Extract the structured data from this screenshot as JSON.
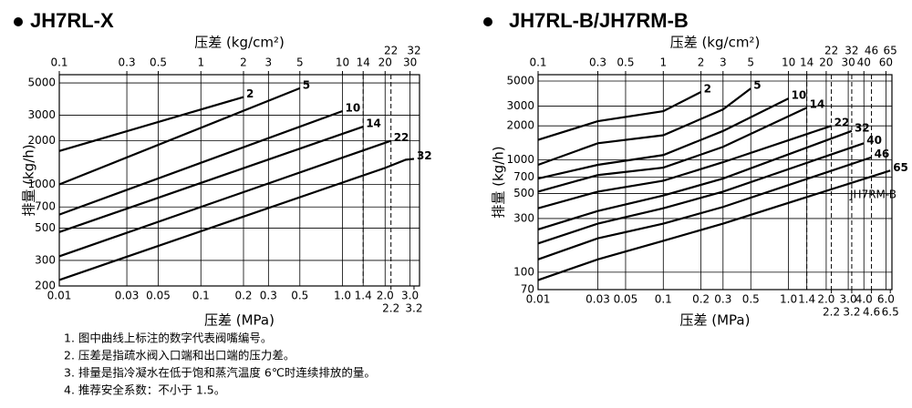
{
  "chart_data": [
    {
      "type": "line",
      "title": "JH7RL-X",
      "x_label": "压差 (MPa)",
      "x2_label": "压差 (kg/cm²)",
      "y_label": "排量 (kg/h)",
      "xscale": "log",
      "yscale": "log",
      "grid": true,
      "color": "#000000",
      "xlim": [
        0.01,
        3.5
      ],
      "ylim": [
        200,
        5700
      ],
      "x2lim": [
        0.1,
        35
      ],
      "xticks": [
        0.01,
        0.03,
        0.05,
        0.1,
        0.2,
        0.3,
        0.5,
        {
          "value": 1,
          "label": "1.0"
        },
        1.4,
        {
          "value": 2,
          "label": "2.0"
        },
        {
          "value": 3,
          "label": "3.0"
        }
      ],
      "xticks_row2": [
        2.2,
        3.2
      ],
      "x2ticks": [
        0.1,
        0.3,
        0.5,
        1,
        2,
        3,
        5,
        10,
        14,
        20,
        30
      ],
      "x2ticks_row2": [
        22,
        32
      ],
      "dashed_x": [
        1.4,
        2.2
      ],
      "yticks": [
        200,
        300,
        500,
        700,
        1000,
        2000,
        3000,
        5000
      ],
      "series": [
        {
          "name": "2",
          "x": [
            0.01,
            0.2
          ],
          "values": [
            1700,
            4000
          ]
        },
        {
          "name": "5",
          "x": [
            0.01,
            0.5
          ],
          "values": [
            1000,
            4600
          ]
        },
        {
          "name": "10",
          "x": [
            0.01,
            1.0
          ],
          "values": [
            620,
            3200
          ]
        },
        {
          "name": "14",
          "x": [
            0.01,
            1.4
          ],
          "values": [
            470,
            2500
          ]
        },
        {
          "name": "22",
          "x": [
            0.01,
            2.2
          ],
          "values": [
            320,
            2000
          ]
        },
        {
          "name": "32",
          "x": [
            0.01,
            2.0,
            2.8,
            3.2
          ],
          "values": [
            220,
            1300,
            1480,
            1500
          ]
        }
      ]
    },
    {
      "type": "line",
      "title": "JH7RL-B/JH7RM-B",
      "x_label": "压差 (MPa)",
      "x2_label": "压差 (kg/cm²)",
      "y_label": "排量 (kg/h)",
      "xscale": "log",
      "yscale": "log",
      "grid": true,
      "color": "#000000",
      "xlim": [
        0.01,
        6.7
      ],
      "ylim": [
        70,
        5700
      ],
      "x2lim": [
        0.1,
        67
      ],
      "xticks": [
        0.01,
        0.03,
        0.05,
        0.1,
        0.2,
        0.3,
        0.5,
        {
          "value": 1,
          "label": "1.0"
        },
        1.4,
        {
          "value": 2,
          "label": "2.0"
        },
        {
          "value": 3,
          "label": "3.0"
        },
        {
          "value": 4,
          "label": "4.0"
        },
        {
          "value": 6,
          "label": "6.0"
        }
      ],
      "xticks_row2": [
        2.2,
        3.2,
        4.6,
        6.5
      ],
      "x2ticks": [
        0.1,
        0.3,
        0.5,
        1,
        2,
        3,
        5,
        10,
        14,
        20,
        30,
        40,
        60
      ],
      "x2ticks_row2": [
        22,
        32,
        46,
        65
      ],
      "dashed_x": [
        1.4,
        2.2,
        3.2,
        4.6
      ],
      "yticks": [
        70,
        100,
        300,
        500,
        700,
        1000,
        2000,
        3000,
        5000
      ],
      "annotation": "JH7RM-B",
      "series": [
        {
          "name": "2",
          "x": [
            0.01,
            0.03,
            0.1,
            0.2
          ],
          "values": [
            1500,
            2200,
            2700,
            4000
          ]
        },
        {
          "name": "5",
          "x": [
            0.01,
            0.03,
            0.1,
            0.3,
            0.5
          ],
          "values": [
            900,
            1400,
            1650,
            2800,
            4300
          ]
        },
        {
          "name": "10",
          "x": [
            0.01,
            0.03,
            0.1,
            0.3,
            1.0
          ],
          "values": [
            680,
            900,
            1100,
            1800,
            3500
          ]
        },
        {
          "name": "14",
          "x": [
            0.01,
            0.03,
            0.1,
            0.3,
            1.4
          ],
          "values": [
            520,
            730,
            850,
            1300,
            2900
          ]
        },
        {
          "name": "22",
          "x": [
            0.01,
            0.03,
            0.1,
            0.3,
            2.2
          ],
          "values": [
            370,
            520,
            650,
            950,
            2000
          ]
        },
        {
          "name": "32",
          "x": [
            0.01,
            0.03,
            0.1,
            0.3,
            3.2
          ],
          "values": [
            240,
            350,
            480,
            680,
            1800
          ]
        },
        {
          "name": "40",
          "x": [
            0.01,
            0.03,
            0.1,
            0.3,
            4.0
          ],
          "values": [
            180,
            270,
            370,
            520,
            1400
          ]
        },
        {
          "name": "46",
          "x": [
            0.01,
            0.03,
            0.1,
            0.3,
            4.6
          ],
          "values": [
            130,
            200,
            270,
            380,
            1050
          ]
        },
        {
          "name": "65",
          "x": [
            0.01,
            0.03,
            0.1,
            0.3,
            6.5
          ],
          "values": [
            85,
            130,
            190,
            270,
            800
          ]
        }
      ]
    }
  ],
  "notes": [
    "1. 图中曲线上标注的数字代表阀嘴编号。",
    "2. 压差是指疏水阀入口端和出口端的压力差。",
    "3. 排量是指冷凝水在低于饱和蒸汽温度 6℃时连续排放的量。",
    "4. 推荐安全系数：不小于 1.5。"
  ]
}
